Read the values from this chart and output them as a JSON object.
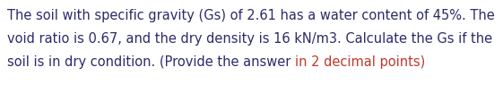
{
  "line1_normal": "The soil with specific gravity (Gs) of 2.61 has a water content of 45%. The",
  "line2_normal": "void ratio is 0.67, and the dry density is 16 kN/m3. Calculate the Gs if the",
  "line3_part1": "soil is in dry condition. (Provide the answer ",
  "line3_part2": "in 2 decimal points)",
  "background_color": "#ffffff",
  "text_color": "#2b2b6b",
  "highlight_color": "#c0392b",
  "font_size": 10.5,
  "fig_width": 5.61,
  "fig_height": 1.14,
  "dpi": 100
}
